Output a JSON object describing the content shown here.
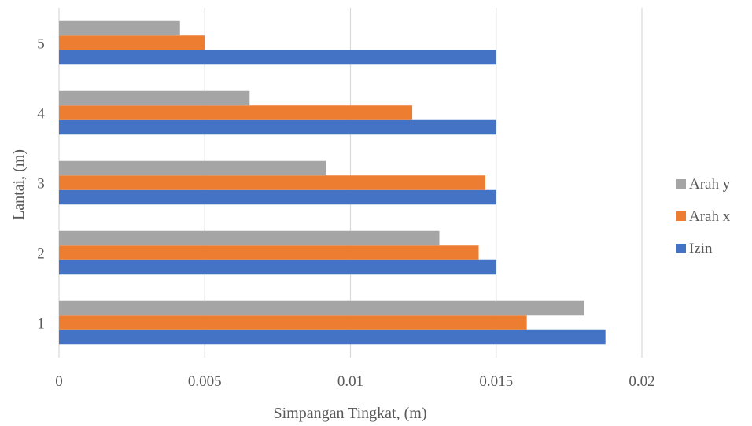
{
  "chart_data": {
    "type": "bar",
    "orientation": "horizontal",
    "title": "",
    "xlabel": "Simpangan Tingkat, (m)",
    "ylabel": "Lantai, (m)",
    "categories": [
      "1",
      "2",
      "3",
      "4",
      "5"
    ],
    "xlim": [
      0,
      0.02
    ],
    "x_ticks": [
      "0",
      "0.005",
      "0.01",
      "0.015",
      "0.02"
    ],
    "grid": "vertical",
    "legend_position": "right",
    "series": [
      {
        "name": "Izin",
        "color": "#4472C4",
        "values": [
          0.01875,
          0.015,
          0.015,
          0.015,
          0.015
        ]
      },
      {
        "name": "Arah x",
        "color": "#ED7D31",
        "values": [
          0.01605,
          0.0144,
          0.01463,
          0.01212,
          0.005
        ]
      },
      {
        "name": "Arah y",
        "color": "#A5A5A5",
        "values": [
          0.01802,
          0.01305,
          0.00915,
          0.00654,
          0.00415
        ]
      }
    ],
    "legend_order": [
      "Arah y",
      "Arah x",
      "Izin"
    ]
  }
}
